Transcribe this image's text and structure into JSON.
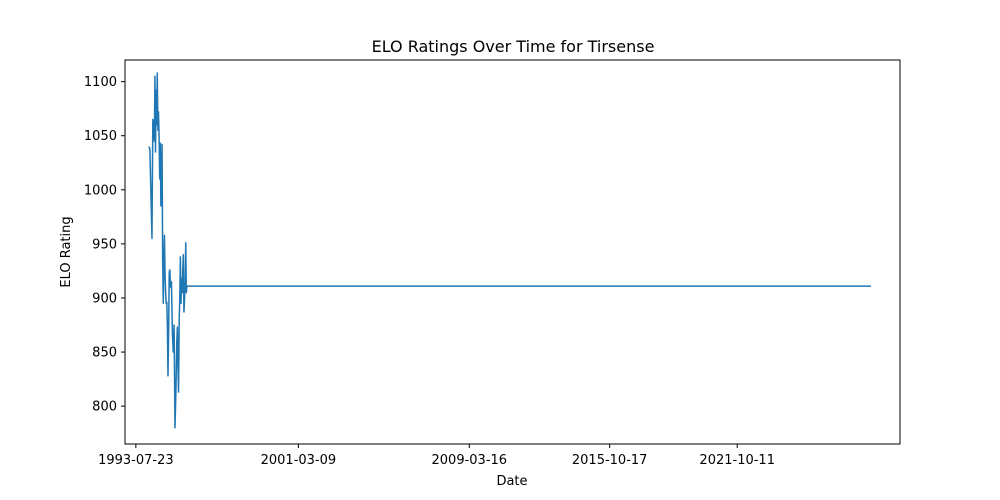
{
  "chart_data": {
    "type": "line",
    "title": "ELO Ratings Over Time for Tirsense",
    "xlabel": "Date",
    "ylabel": "ELO Rating",
    "xlim": [
      "1993-01-18",
      "2029-06-01"
    ],
    "ylim": [
      765,
      1120
    ],
    "x_ticks": [
      "1993-07-23",
      "2001-03-09",
      "2009-03-16",
      "2015-10-17",
      "2021-10-11"
    ],
    "y_ticks": [
      800,
      850,
      900,
      950,
      1000,
      1050,
      1100
    ],
    "grid": false,
    "line_color": "#1f77b4",
    "series": [
      {
        "x": [
          "1994-03-01",
          "1994-03-20",
          "1994-04-10",
          "1994-04-25",
          "1994-05-10",
          "1994-05-25",
          "1994-06-05",
          "1994-06-15",
          "1994-06-25",
          "1994-07-05",
          "1994-07-15",
          "1994-07-25",
          "1994-08-05",
          "1994-08-15",
          "1994-08-25",
          "1994-09-05",
          "1994-09-15",
          "1994-09-25",
          "1994-10-05",
          "1994-10-15",
          "1994-10-25",
          "1994-11-05",
          "1994-11-15",
          "1994-11-25",
          "1994-12-05",
          "1994-12-15",
          "1994-12-25",
          "1995-01-05",
          "1995-01-15",
          "1995-01-25",
          "1995-02-05",
          "1995-02-15",
          "1995-02-25",
          "1995-03-10",
          "1995-03-25",
          "1995-04-10",
          "1995-04-25",
          "1995-05-10",
          "1995-05-25",
          "1995-06-10",
          "1995-06-25",
          "1995-07-05",
          "1995-07-15",
          "1995-07-25",
          "1995-08-05",
          "1995-08-15",
          "1995-08-25",
          "1995-09-05",
          "1995-09-15",
          "1995-09-25",
          "1995-10-05",
          "1995-10-15",
          "1995-10-25",
          "1995-11-05",
          "1995-11-15",
          "1995-11-25",
          "1995-12-05",
          "1995-12-15",
          "1995-12-25",
          "1996-01-05",
          "1996-01-15",
          "1996-01-25",
          "1996-02-05",
          "1996-02-15",
          "1996-02-25",
          "1996-03-05",
          "1996-03-15",
          "1996-03-25",
          "1996-04-05",
          "1996-04-15",
          "1996-04-25",
          "1996-05-05",
          "1996-05-15",
          "1996-05-25",
          "1996-06-05",
          "1996-06-15",
          "1996-06-25",
          "1996-07-05",
          "1996-07-15",
          "1996-07-25",
          "1996-08-05",
          "1996-08-15",
          "1996-08-25",
          "1996-09-05",
          "1996-09-15",
          "1996-09-25",
          "1996-10-05",
          "1996-10-15",
          "1996-10-25",
          "1996-11-05",
          "1996-11-15",
          "1996-11-25",
          "1996-12-05",
          "1996-12-15",
          "1996-12-25",
          "1997-01-05",
          "1997-01-15",
          "1997-01-25",
          "1997-02-05",
          "1997-02-15",
          "1997-03-01",
          "1997-03-15",
          "1997-04-01",
          "1997-04-15",
          "1997-05-01",
          "2028-01-20"
        ],
        "y": [
          1040,
          1038,
          990,
          955,
          1065,
          1060,
          1045,
          1105,
          1035,
          1092,
          1060,
          1108,
          1055,
          1072,
          1050,
          1010,
          1043,
          985,
          1005,
          1042,
          938,
          895,
          935,
          958,
          923,
          905,
          895,
          896,
          872,
          828,
          870,
          924,
          926,
          910,
          915,
          868,
          850,
          875,
          780,
          815,
          860,
          873,
          835,
          813,
          880,
          900,
          938,
          895,
          918,
          905,
          925,
          940,
          887,
          900,
          912,
          951,
          905,
          911,
          911,
          911,
          911,
          911,
          911,
          911,
          911,
          911,
          911,
          911,
          911,
          911,
          911,
          911,
          911,
          911,
          911,
          911,
          911,
          911,
          911,
          911,
          911,
          911,
          911,
          911,
          911,
          911,
          911,
          911,
          911,
          911,
          911,
          911,
          911,
          911,
          911,
          911,
          911,
          911,
          911,
          911,
          911,
          911,
          911,
          911,
          911,
          911
        ]
      }
    ]
  }
}
